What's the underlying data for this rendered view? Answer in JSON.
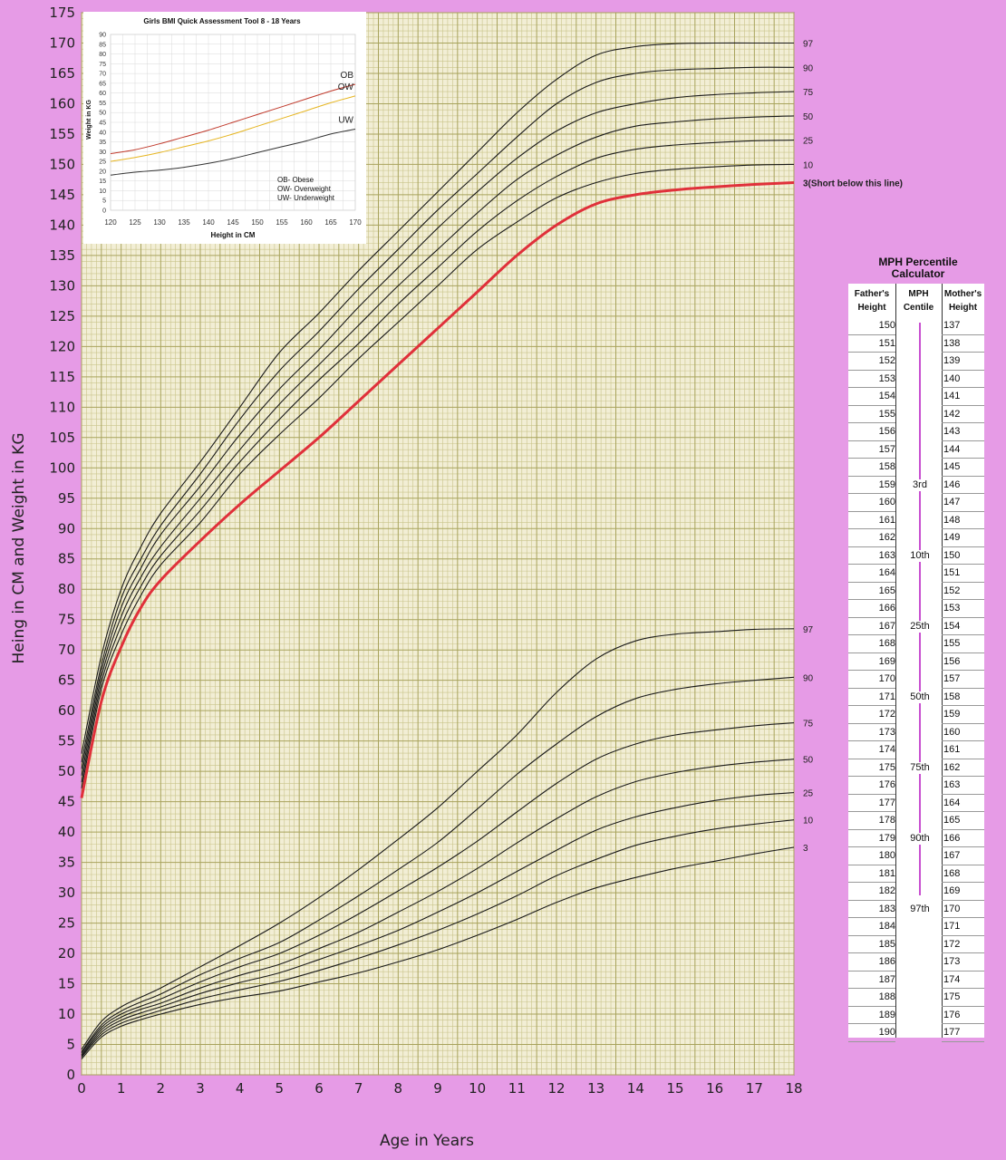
{
  "chart_data": [
    {
      "type": "line",
      "title": "",
      "xlabel": "Age in Years",
      "ylabel": "Heing in CM and Weight in KG",
      "xlim": [
        0,
        18
      ],
      "ylim": [
        0,
        175
      ],
      "x_ticks": [
        0,
        1,
        2,
        3,
        4,
        5,
        6,
        7,
        8,
        9,
        10,
        11,
        12,
        13,
        14,
        15,
        16,
        17,
        18
      ],
      "y_ticks": [
        0,
        5,
        10,
        15,
        20,
        25,
        30,
        35,
        40,
        45,
        50,
        55,
        60,
        65,
        70,
        75,
        80,
        85,
        90,
        95,
        100,
        105,
        110,
        115,
        120,
        125,
        130,
        135,
        140,
        145,
        150,
        155,
        160,
        165,
        170,
        175
      ],
      "x": [
        0,
        0.5,
        1,
        1.5,
        2,
        3,
        4,
        5,
        6,
        7,
        8,
        9,
        10,
        11,
        12,
        13,
        14,
        15,
        16,
        17,
        18
      ],
      "height_series": [
        {
          "name": "97",
          "values": [
            52.9,
            69,
            80,
            87,
            92.5,
            101,
            110,
            119,
            125.5,
            132.5,
            139,
            145.5,
            152,
            158.5,
            164,
            168,
            169.4,
            169.9,
            170,
            170,
            170
          ]
        },
        {
          "name": "90",
          "values": [
            51.5,
            67.5,
            78.5,
            85,
            90.5,
            99,
            108,
            116,
            122.5,
            129.5,
            136,
            142.5,
            148.5,
            154.5,
            160,
            163.5,
            165,
            165.6,
            165.8,
            166,
            166
          ]
        },
        {
          "name": "75",
          "values": [
            50.4,
            66.5,
            77,
            83.5,
            89,
            97,
            105.5,
            113,
            119.5,
            126.5,
            133,
            139.5,
            145.5,
            151,
            155.5,
            158.5,
            160,
            161,
            161.5,
            161.8,
            162
          ]
        },
        {
          "name": "50",
          "values": [
            49.3,
            65.5,
            75.5,
            82,
            87,
            95,
            103,
            110.5,
            117,
            123.5,
            130,
            136,
            142,
            147.5,
            151.5,
            154.5,
            156.3,
            157,
            157.5,
            157.8,
            158
          ]
        },
        {
          "name": "25",
          "values": [
            48.2,
            64.5,
            74,
            80.5,
            85.5,
            93,
            101,
            108,
            114.5,
            120.5,
            127,
            133,
            139,
            144,
            148,
            151,
            152.5,
            153.2,
            153.6,
            153.9,
            154
          ]
        },
        {
          "name": "10",
          "values": [
            47.2,
            63.5,
            72.5,
            79,
            84,
            91,
            99,
            105.5,
            111.5,
            118,
            124,
            130,
            136,
            140.5,
            144.5,
            147,
            148.5,
            149.2,
            149.6,
            149.9,
            150
          ]
        },
        {
          "name": "3",
          "values": [
            45.6,
            61.5,
            70.5,
            77,
            81.5,
            88,
            94,
            99.5,
            105,
            111,
            117,
            123,
            129,
            135,
            140,
            143.5,
            145,
            145.8,
            146.3,
            146.7,
            147
          ],
          "highlight": true
        }
      ],
      "weight_series": [
        {
          "name": "97",
          "values": [
            4.2,
            8.8,
            11.2,
            12.8,
            14.3,
            17.8,
            21.3,
            25,
            29.2,
            33.8,
            38.8,
            44,
            50,
            56,
            63,
            68.5,
            71.5,
            72.6,
            73,
            73.4,
            73.5
          ]
        },
        {
          "name": "90",
          "values": [
            3.8,
            8.2,
            10.5,
            12,
            13.3,
            16.5,
            19.2,
            21.8,
            25.5,
            29.5,
            33.8,
            38.3,
            43.8,
            49.5,
            54.5,
            59,
            62,
            63.5,
            64.4,
            65,
            65.5
          ]
        },
        {
          "name": "75",
          "values": [
            3.6,
            7.8,
            10,
            11.3,
            12.5,
            15.3,
            17.8,
            20,
            23,
            26.5,
            30.3,
            34.2,
            38.5,
            43.3,
            48,
            52,
            54.5,
            56,
            56.8,
            57.5,
            58
          ]
        },
        {
          "name": "50",
          "values": [
            3.3,
            7.4,
            9.5,
            10.8,
            11.8,
            14.3,
            16.4,
            18.2,
            20.8,
            23.5,
            26.8,
            30.2,
            34,
            38.2,
            42.2,
            45.8,
            48.3,
            49.8,
            50.8,
            51.5,
            52
          ]
        },
        {
          "name": "25",
          "values": [
            3.1,
            7,
            9,
            10.2,
            11.2,
            13.4,
            15.2,
            16.8,
            19,
            21.3,
            23.8,
            26.8,
            30,
            33.5,
            37,
            40.3,
            42.5,
            44,
            45.2,
            46,
            46.5
          ]
        },
        {
          "name": "10",
          "values": [
            2.9,
            6.6,
            8.5,
            9.6,
            10.6,
            12.5,
            14,
            15.4,
            17.2,
            19.2,
            21.4,
            23.8,
            26.5,
            29.5,
            32.8,
            35.5,
            37.8,
            39.3,
            40.5,
            41.3,
            42
          ]
        },
        {
          "name": "3",
          "values": [
            2.6,
            6.2,
            8,
            9.1,
            10,
            11.6,
            12.8,
            13.8,
            15.3,
            16.8,
            18.6,
            20.6,
            23,
            25.6,
            28.4,
            30.8,
            32.5,
            34,
            35.2,
            36.4,
            37.5
          ]
        }
      ],
      "height_labels": [
        "97",
        "90",
        "75",
        "50",
        "25",
        "10",
        "3(Short below this line)"
      ],
      "weight_labels": [
        "97",
        "90",
        "75",
        "50",
        "25",
        "10",
        "3"
      ],
      "highlight_color": "#e0303a",
      "grid": true
    },
    {
      "type": "line",
      "title": "Girls BMI Quick Assessment Tool 8 - 18 Years",
      "xlabel": "Height in CM",
      "ylabel": "Weight in KG",
      "xlim": [
        120,
        170
      ],
      "ylim": [
        0,
        90
      ],
      "x_ticks": [
        120,
        125,
        130,
        135,
        140,
        145,
        150,
        155,
        160,
        165,
        170
      ],
      "y_ticks": [
        0,
        5,
        10,
        15,
        20,
        25,
        30,
        35,
        40,
        45,
        50,
        55,
        60,
        65,
        70,
        75,
        80,
        85,
        90
      ],
      "x": [
        120,
        125,
        130,
        135,
        140,
        145,
        150,
        155,
        160,
        165,
        170
      ],
      "series": [
        {
          "name": "OB",
          "values": [
            29,
            31,
            34,
            37.5,
            41,
            45,
            49,
            53,
            57,
            61,
            64.5
          ],
          "color": "#c0392b"
        },
        {
          "name": "OW",
          "values": [
            25,
            27,
            29.5,
            32.5,
            35.5,
            39,
            43,
            47,
            51,
            55,
            58.5
          ],
          "color": "#e6b520"
        },
        {
          "name": "UW",
          "values": [
            18,
            19.5,
            20.5,
            22,
            24,
            26.5,
            29.5,
            32.5,
            35.5,
            39,
            41.5
          ],
          "color": "#333333"
        }
      ],
      "legend": [
        "OB- Obese",
        "OW- Overweight",
        "UW- Underweight"
      ],
      "grid": true
    }
  ],
  "mph_calculator": {
    "title_line1": "MPH Percentile",
    "title_line2": "Calculator",
    "headers": {
      "father": [
        "Father's",
        "Height"
      ],
      "centile": [
        "MPH",
        "Centile"
      ],
      "mother": [
        "Mother's",
        "Height"
      ]
    },
    "fathers_height": [
      "150",
      "151",
      "152",
      "153",
      "154",
      "155",
      "156",
      "157",
      "158",
      "159",
      "160",
      "161",
      "162",
      "163",
      "164",
      "165",
      "166",
      "167",
      "168",
      "169",
      "170",
      "171",
      "172",
      "173",
      "174",
      "175",
      "176",
      "177",
      "178",
      "179",
      "180",
      "181",
      "182",
      "183",
      "184",
      "185",
      "186",
      "187",
      "188",
      "189",
      "190"
    ],
    "mothers_height": [
      "137",
      "138",
      "139",
      "140",
      "141",
      "142",
      "143",
      "144",
      "145",
      "146",
      "147",
      "148",
      "149",
      "150",
      "151",
      "152",
      "153",
      "154",
      "155",
      "156",
      "157",
      "158",
      "159",
      "160",
      "161",
      "162",
      "163",
      "164",
      "165",
      "166",
      "167",
      "168",
      "169",
      "170",
      "171",
      "172",
      "173",
      "174",
      "175",
      "176",
      "177"
    ],
    "centiles": {
      "9": "3rd",
      "13": "10th",
      "17": "25th",
      "21": "50th",
      "25": "75th",
      "29": "90th",
      "33": "97th"
    },
    "bar_color": "#c84fd0"
  }
}
